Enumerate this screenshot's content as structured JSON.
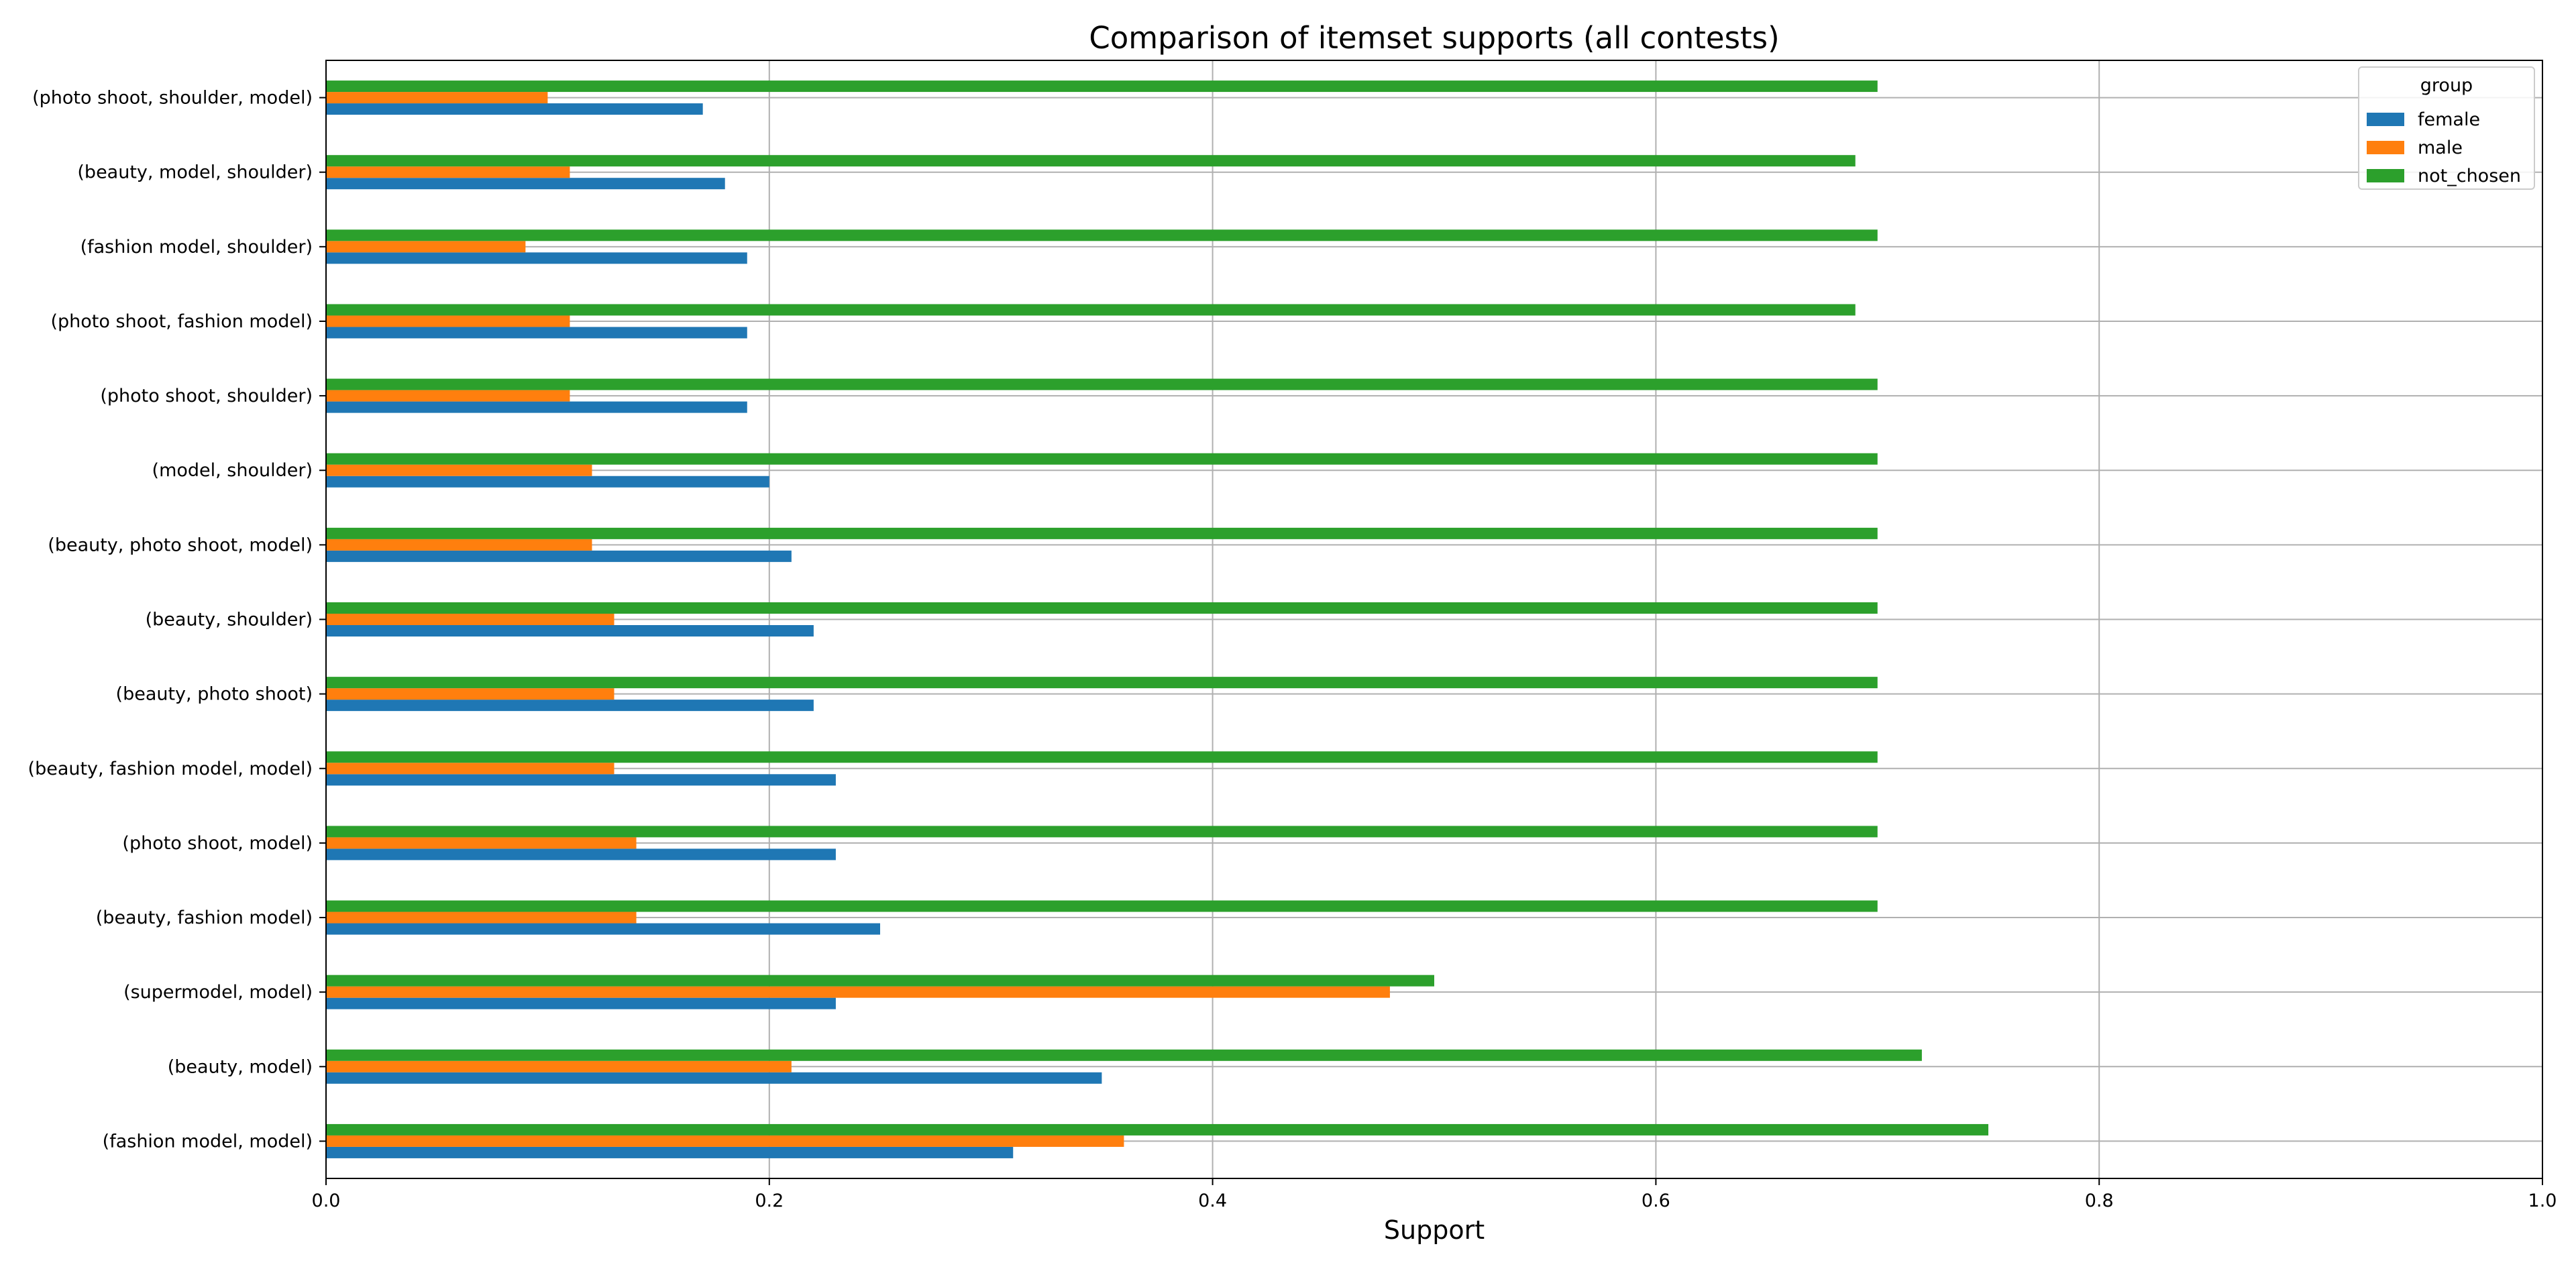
{
  "chart_data": {
    "type": "bar",
    "orientation": "horizontal",
    "title": "Comparison of itemset supports (all contests)",
    "xlabel": "Support",
    "ylabel": "",
    "xlim": [
      0,
      1.0
    ],
    "xticks": [
      "0.0",
      "0.2",
      "0.4",
      "0.6",
      "0.8",
      "1.0"
    ],
    "grid": true,
    "legend": {
      "title": "group",
      "position": "top-right"
    },
    "categories": [
      "(photo shoot, shoulder, model)",
      "(beauty, model, shoulder)",
      "(fashion model, shoulder)",
      "(photo shoot, fashion model)",
      "(photo shoot, shoulder)",
      "(model, shoulder)",
      "(beauty, photo shoot, model)",
      "(beauty, shoulder)",
      "(beauty, photo shoot)",
      "(beauty, fashion model, model)",
      "(photo shoot, model)",
      "(beauty, fashion model)",
      "(supermodel, model)",
      "(beauty, model)",
      "(fashion model, model)"
    ],
    "series": [
      {
        "name": "female",
        "color": "#1f77b4",
        "values": [
          0.17,
          0.18,
          0.19,
          0.19,
          0.19,
          0.2,
          0.21,
          0.22,
          0.22,
          0.23,
          0.23,
          0.25,
          0.23,
          0.35,
          0.31
        ]
      },
      {
        "name": "male",
        "color": "#ff7f0e",
        "values": [
          0.1,
          0.11,
          0.09,
          0.11,
          0.11,
          0.12,
          0.12,
          0.13,
          0.13,
          0.13,
          0.14,
          0.14,
          0.48,
          0.21,
          0.36
        ]
      },
      {
        "name": "not_chosen",
        "color": "#2ca02c",
        "values": [
          0.7,
          0.69,
          0.7,
          0.69,
          0.7,
          0.7,
          0.7,
          0.7,
          0.7,
          0.7,
          0.7,
          0.7,
          0.5,
          0.72,
          0.75
        ]
      }
    ]
  }
}
